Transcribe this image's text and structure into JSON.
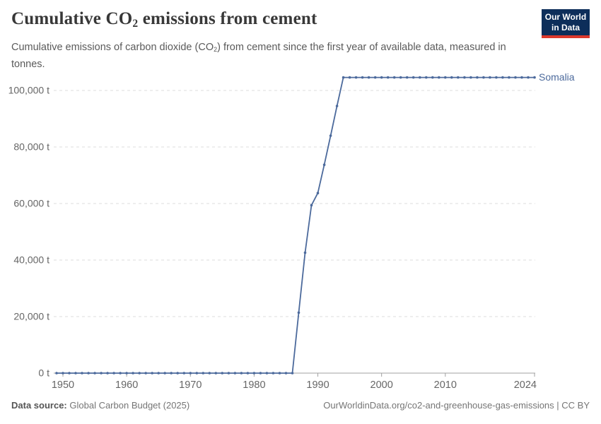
{
  "header": {
    "title": {
      "pre": "Cumulative CO",
      "sub": "2",
      "post": " emissions from cement"
    },
    "subtitle": {
      "pre": "Cumulative emissions of carbon dioxide (CO",
      "sub": "2",
      "post": ") from cement since the first year of available data, measured in tonnes."
    },
    "logo": {
      "line1": "Our World",
      "line2": "in Data",
      "bg_color": "#0d2e5a",
      "accent_color": "#dc392c"
    }
  },
  "chart_data": {
    "type": "line",
    "title": "Cumulative CO₂ emissions from cement",
    "unit": "t",
    "grid": true,
    "legend_position": "end-of-line",
    "series": [
      {
        "name": "Somalia",
        "color": "#4c6a9c",
        "x": [
          1949,
          1950,
          1951,
          1952,
          1953,
          1954,
          1955,
          1956,
          1957,
          1958,
          1959,
          1960,
          1961,
          1962,
          1963,
          1964,
          1965,
          1966,
          1967,
          1968,
          1969,
          1970,
          1971,
          1972,
          1973,
          1974,
          1975,
          1976,
          1977,
          1978,
          1979,
          1980,
          1981,
          1982,
          1983,
          1984,
          1985,
          1986,
          1987,
          1988,
          1989,
          1990,
          1991,
          1992,
          1993,
          1994,
          1995,
          1996,
          1997,
          1998,
          1999,
          2000,
          2001,
          2002,
          2003,
          2004,
          2005,
          2006,
          2007,
          2008,
          2009,
          2010,
          2011,
          2012,
          2013,
          2014,
          2015,
          2016,
          2017,
          2018,
          2019,
          2020,
          2021,
          2022,
          2023,
          2024
        ],
        "values": [
          0,
          0,
          0,
          0,
          0,
          0,
          0,
          0,
          0,
          0,
          0,
          0,
          0,
          0,
          0,
          0,
          0,
          0,
          0,
          0,
          0,
          0,
          0,
          0,
          0,
          0,
          0,
          0,
          0,
          0,
          0,
          0,
          0,
          0,
          0,
          0,
          0,
          0,
          21400,
          42600,
          59400,
          63700,
          73700,
          84000,
          94500,
          104600,
          104600,
          104600,
          104600,
          104600,
          104600,
          104600,
          104600,
          104600,
          104600,
          104600,
          104600,
          104600,
          104600,
          104600,
          104600,
          104600,
          104600,
          104600,
          104600,
          104600,
          104600,
          104600,
          104600,
          104600,
          104600,
          104600,
          104600,
          104600,
          104600,
          104600
        ]
      }
    ],
    "xlim": [
      1949,
      2024
    ],
    "ylim": [
      0,
      100000
    ],
    "xticks": [
      {
        "value": 1950,
        "label": "1950"
      },
      {
        "value": 1960,
        "label": "1960"
      },
      {
        "value": 1970,
        "label": "1970"
      },
      {
        "value": 1980,
        "label": "1980"
      },
      {
        "value": 1990,
        "label": "1990"
      },
      {
        "value": 2000,
        "label": "2000"
      },
      {
        "value": 2010,
        "label": "2010"
      },
      {
        "value": 2024,
        "label": "2024"
      }
    ],
    "yticks": [
      {
        "value": 0,
        "label": "0 t"
      },
      {
        "value": 20000,
        "label": "20,000 t"
      },
      {
        "value": 40000,
        "label": "40,000 t"
      },
      {
        "value": 60000,
        "label": "60,000 t"
      },
      {
        "value": 80000,
        "label": "80,000 t"
      },
      {
        "value": 100000,
        "label": "100,000 t"
      }
    ],
    "colors": {
      "line": "#4c6a9c",
      "gridline": "#dddddd",
      "axis_line": "#a0a0a0",
      "tick_label": "#666666"
    }
  },
  "footer": {
    "datasource_label": "Data source:",
    "datasource_value": "Global Carbon Budget (2025)",
    "credit": "OurWorldinData.org/co2-and-greenhouse-gas-emissions | CC BY"
  }
}
